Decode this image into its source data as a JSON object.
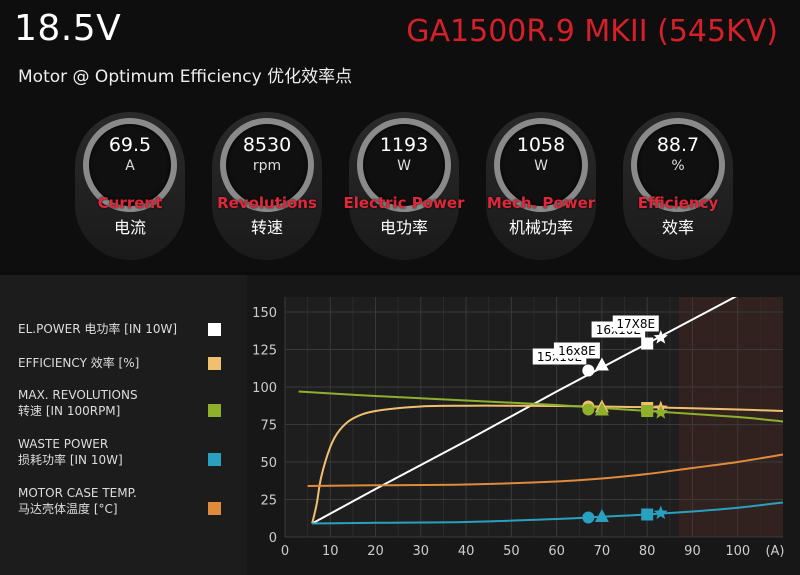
{
  "header": {
    "voltage": "18.5V",
    "model": "GA1500R.9 MKII (545KV)",
    "subtitle": "Motor @ Optimum Efficiency  优化效率点"
  },
  "gauges": [
    {
      "value": "69.5",
      "unit": "A",
      "label_en": "Current",
      "label_cn": "电流"
    },
    {
      "value": "8530",
      "unit": "rpm",
      "label_en": "Revolutions",
      "label_cn": "转速"
    },
    {
      "value": "1193",
      "unit": "W",
      "label_en": "Electric Power",
      "label_cn": "电功率"
    },
    {
      "value": "1058",
      "unit": "W",
      "label_en": "Mech. Power",
      "label_cn": "机械功率"
    },
    {
      "value": "88.7",
      "unit": "%",
      "label_en": "Efficiency",
      "label_cn": "效率"
    }
  ],
  "legend": [
    {
      "line1": "EL.POWER 电功率 [IN 10W]",
      "line2": "",
      "color": "#ffffff"
    },
    {
      "line1": "EFFICIENCY 效率 [%]",
      "line2": "",
      "color": "#f0c070"
    },
    {
      "line1": "MAX. REVOLUTIONS",
      "line2": "转速 [IN 100RPM]",
      "color": "#8fb02a"
    },
    {
      "line1": "WASTE POWER",
      "line2": "损耗功率 [IN 10W]",
      "color": "#2aa0c0"
    },
    {
      "line1": "MOTOR CASE TEMP.",
      "line2": "马达壳体温度 [°C]",
      "color": "#e08a3c"
    }
  ],
  "chart_data": {
    "type": "line",
    "xlim": [
      0,
      110
    ],
    "ylim": [
      0,
      160
    ],
    "x_ticks": [
      0,
      10,
      20,
      30,
      40,
      50,
      60,
      70,
      80,
      90,
      100
    ],
    "x_tick_labels": [
      "0",
      "10",
      "20",
      "30",
      "40",
      "50",
      "60",
      "70",
      "80",
      "90",
      "100"
    ],
    "x_unit": "(A)",
    "y_ticks": [
      0,
      25,
      50,
      75,
      100,
      125,
      150
    ],
    "y_tick_labels": [
      "0",
      "25",
      "50",
      "75",
      "100",
      "125",
      "150"
    ],
    "grid": true,
    "shaded_region_x": [
      87,
      110
    ],
    "series": [
      {
        "key": "power",
        "color": "#ffffff",
        "x": [
          6,
          20,
          40,
          60,
          80,
          100,
          108
        ],
        "y": [
          9,
          32,
          64,
          97,
          129,
          161,
          174
        ]
      },
      {
        "key": "efficiency",
        "color": "#f0c070",
        "x": [
          6,
          7,
          8,
          10,
          12,
          15,
          20,
          30,
          40,
          50,
          60,
          70,
          80,
          90,
          100,
          110
        ],
        "y": [
          9,
          22,
          40,
          60,
          71,
          79,
          84,
          87,
          87.5,
          87.5,
          87.3,
          87,
          86.5,
          85.8,
          85,
          84
        ]
      },
      {
        "key": "revolutions",
        "color": "#8fb02a",
        "x": [
          3,
          20,
          40,
          60,
          80,
          100,
          110
        ],
        "y": [
          97,
          94,
          91,
          88,
          84,
          80,
          77
        ]
      },
      {
        "key": "waste",
        "color": "#2aa0c0",
        "x": [
          6,
          20,
          40,
          60,
          70,
          80,
          90,
          100,
          110
        ],
        "y": [
          9,
          9.5,
          10,
          12,
          13.5,
          15,
          17,
          19.5,
          23
        ]
      },
      {
        "key": "case_temp",
        "color": "#e08a3c",
        "x": [
          5,
          20,
          40,
          60,
          70,
          80,
          90,
          100,
          110
        ],
        "y": [
          34,
          34.5,
          35,
          37,
          39,
          42,
          46,
          50,
          55
        ]
      }
    ],
    "markers": [
      {
        "label": "15x10E",
        "shape": "circle",
        "x": 67,
        "power": 111,
        "efficiency": 87,
        "revolutions": 85,
        "waste": 13,
        "case_temp": 38
      },
      {
        "label": "16x8E",
        "shape": "triangle",
        "x": 70,
        "power": 115,
        "efficiency": 87,
        "revolutions": 85,
        "waste": 14,
        "case_temp": 39
      },
      {
        "label": "16x10E",
        "shape": "square",
        "x": 80,
        "power": 129,
        "efficiency": 86,
        "revolutions": 84,
        "waste": 15,
        "case_temp": 41
      },
      {
        "label": "17X8E",
        "shape": "star",
        "x": 83,
        "power": 133,
        "efficiency": 86,
        "revolutions": 83,
        "waste": 16,
        "case_temp": 42
      }
    ]
  }
}
